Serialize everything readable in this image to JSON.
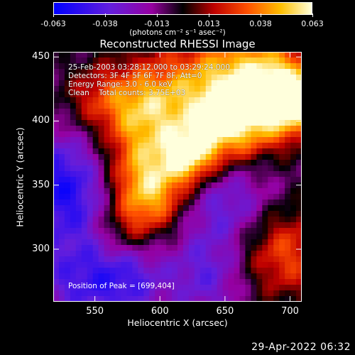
{
  "chart_data": {
    "type": "heatmap",
    "title": "Reconstructed RHESSI Image",
    "xlabel": "Heliocentric X (arcsec)",
    "ylabel": "Heliocentric Y (arcsec)",
    "xlim": [
      518,
      709
    ],
    "ylim": [
      259,
      454
    ],
    "x_ticks": [
      550,
      600,
      650,
      700
    ],
    "y_ticks": [
      300,
      350,
      400,
      450
    ],
    "colorbar": {
      "range": [
        -0.063,
        0.063
      ],
      "tick_labels": [
        "-0.063",
        "-0.038",
        "-0.013",
        "0.013",
        "0.038",
        "0.063"
      ],
      "units": "(photons cm⁻² s⁻¹ asec⁻²)"
    },
    "annotations": [
      "25-Feb-2003 03:28:12.000 to 03:29:24.000",
      "Detectors: 3F 4F 5F 6F 7F 8F, Att=0",
      "Energy Range: 3.0 - 6.0 keV",
      "Clean    Total counts: 3.75E+03"
    ],
    "peak_label": "Position of Peak = [699,404]",
    "peak": [
      699,
      404
    ],
    "colors": {
      "background": "#000000",
      "text": "#ffffff"
    },
    "grid": false
  },
  "footer": {
    "timestamp": "29-Apr-2022 06:32"
  }
}
